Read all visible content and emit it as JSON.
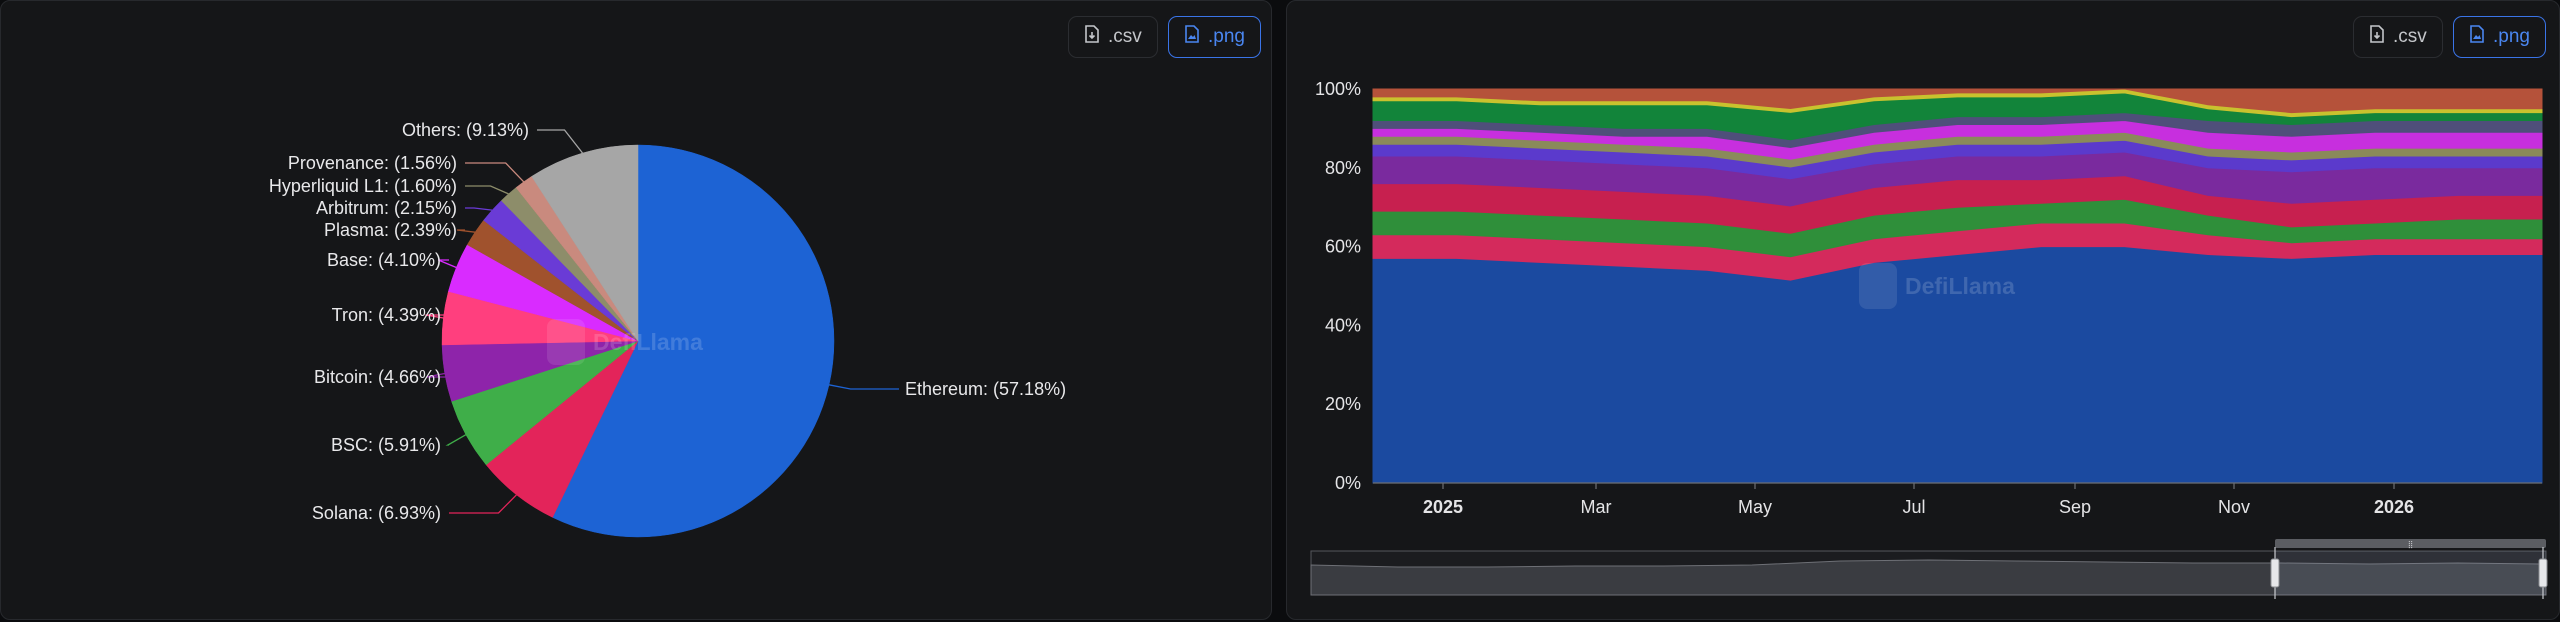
{
  "buttons": {
    "csv_label": ".csv",
    "png_label": ".png"
  },
  "watermark": "DefiLlama",
  "icons": {
    "download": "file-download-icon",
    "image": "file-image-icon"
  },
  "chart_data": [
    {
      "type": "pie",
      "series": [
        {
          "values": [
            {
              "label": "Ethereum",
              "value": 57.18,
              "text": "Ethereum: (57.18%)",
              "color": "#1d63d4"
            },
            {
              "label": "Solana",
              "value": 6.93,
              "text": "Solana: (6.93%)",
              "color": "#e3245a"
            },
            {
              "label": "BSC",
              "value": 5.91,
              "text": "BSC: (5.91%)",
              "color": "#3fae49"
            },
            {
              "label": "Bitcoin",
              "value": 4.66,
              "text": "Bitcoin: (4.66%)",
              "color": "#8e24aa"
            },
            {
              "label": "Tron",
              "value": 4.39,
              "text": "Tron: (4.39%)",
              "color": "#ff3f7e"
            },
            {
              "label": "Base",
              "value": 4.1,
              "text": "Base: (4.10%)",
              "color": "#d92bff"
            },
            {
              "label": "Plasma",
              "value": 2.39,
              "text": "Plasma: (2.39%)",
              "color": "#a0522d"
            },
            {
              "label": "Arbitrum",
              "value": 2.15,
              "text": "Arbitrum: (2.15%)",
              "color": "#6a3bd6"
            },
            {
              "label": "Hyperliquid L1",
              "value": 1.6,
              "text": "Hyperliquid L1: (1.60%)",
              "color": "#8d8d6a"
            },
            {
              "label": "Provenance",
              "value": 1.56,
              "text": "Provenance: (1.56%)",
              "color": "#c98a7e"
            },
            {
              "label": "Others",
              "value": 9.13,
              "text": "Others: (9.13%)",
              "color": "#a6a6a6"
            }
          ]
        }
      ]
    },
    {
      "type": "area",
      "stacked": true,
      "normalized": true,
      "x": [
        "2024-12",
        "2025-01",
        "2025-02",
        "2025-03",
        "2025-04",
        "2025-05",
        "2025-06",
        "2025-07",
        "2025-08",
        "2025-09",
        "2025-10",
        "2025-11",
        "2025-12",
        "2026-01",
        "2026-02"
      ],
      "x_tick_labels": [
        "2025",
        "Mar",
        "May",
        "Jul",
        "Sep",
        "Nov",
        "2026"
      ],
      "y_tick_labels": [
        "0%",
        "20%",
        "40%",
        "60%",
        "80%",
        "100%"
      ],
      "ylim": [
        0,
        100
      ],
      "series": [
        {
          "color": "#1b4aa0",
          "values": [
            57,
            57,
            56,
            55,
            54,
            52,
            56,
            58,
            60,
            60,
            58,
            57,
            58,
            58,
            58
          ]
        },
        {
          "color": "#d42a5c",
          "values": [
            6,
            6,
            6,
            6,
            6,
            6,
            6,
            6,
            6,
            6,
            5,
            4,
            4,
            4,
            4
          ]
        },
        {
          "color": "#2f8f3a",
          "values": [
            6,
            6,
            6,
            6,
            6,
            6,
            6,
            6,
            5,
            6,
            5,
            4,
            4,
            5,
            5
          ]
        },
        {
          "color": "#c7204f",
          "values": [
            7,
            7,
            7,
            7,
            7,
            7,
            7,
            7,
            6,
            6,
            5,
            6,
            6,
            6,
            6
          ]
        },
        {
          "color": "#7a2a9e",
          "values": [
            7,
            7,
            7,
            7,
            7,
            7,
            6,
            6,
            6,
            6,
            7,
            8,
            8,
            7,
            7
          ]
        },
        {
          "color": "#5b3acc",
          "values": [
            3,
            3,
            3,
            3,
            3,
            3,
            3,
            3,
            3,
            3,
            3,
            3,
            3,
            3,
            3
          ]
        },
        {
          "color": "#8a8a5a",
          "values": [
            2,
            2,
            2,
            2,
            2,
            2,
            2,
            2,
            2,
            2,
            2,
            2,
            2,
            2,
            2
          ]
        },
        {
          "color": "#c72fde",
          "values": [
            2,
            2,
            2,
            2,
            3,
            3,
            3,
            3,
            3,
            3,
            4,
            4,
            4,
            4,
            4
          ]
        },
        {
          "color": "#4f4f7a",
          "values": [
            2,
            2,
            2,
            2,
            2,
            2,
            2,
            2,
            2,
            2,
            3,
            3,
            3,
            3,
            3
          ]
        },
        {
          "color": "#12843a",
          "values": [
            5,
            5,
            5,
            6,
            6,
            7,
            6,
            5,
            5,
            5,
            3,
            2,
            2,
            2,
            2
          ]
        },
        {
          "color": "#c9c22e",
          "values": [
            1,
            1,
            1,
            1,
            1,
            1,
            1,
            1,
            1,
            1,
            1,
            1,
            1,
            1,
            1
          ]
        },
        {
          "color": "#b5523a",
          "values": [
            2,
            2,
            3,
            3,
            3,
            5,
            2,
            1,
            1,
            0,
            4,
            6,
            5,
            5,
            5
          ]
        }
      ]
    }
  ]
}
